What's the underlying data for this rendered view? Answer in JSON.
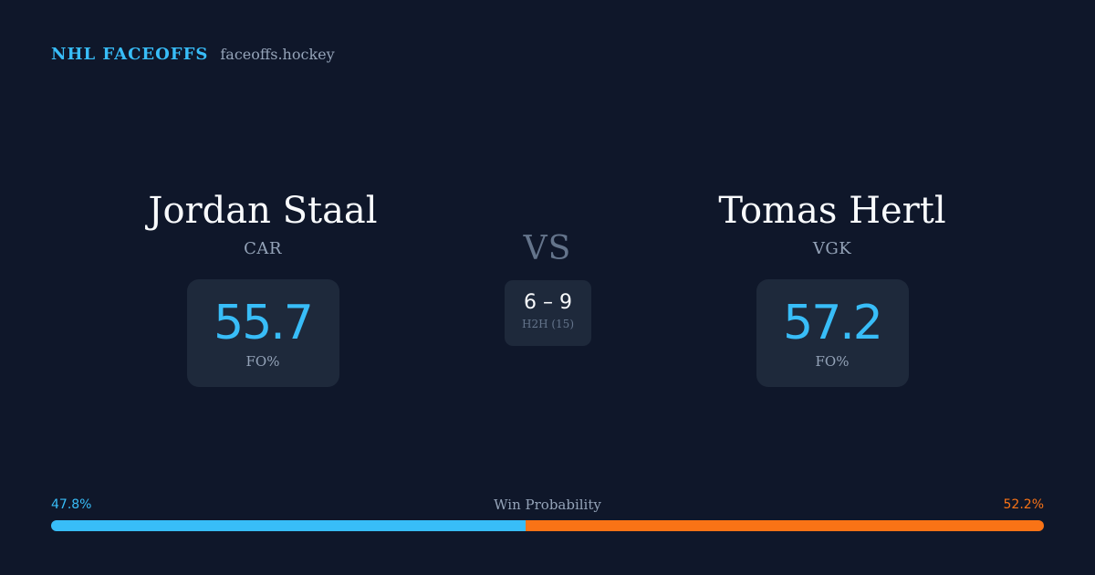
{
  "brand": {
    "name": "NHL FACEOFFS",
    "domain": "faceoffs.hockey"
  },
  "matchup": {
    "vs_label": "VS",
    "h2h": {
      "score": "6 – 9",
      "label": "H2H (15)"
    }
  },
  "players": [
    {
      "name": "Jordan Staal",
      "team": "CAR",
      "fo_pct": "55.7",
      "fo_label": "FO%"
    },
    {
      "name": "Tomas Hertl",
      "team": "VGK",
      "fo_pct": "57.2",
      "fo_label": "FO%"
    }
  ],
  "win_probability": {
    "title": "Win Probability",
    "left_label": "47.8%",
    "right_label": "52.2%",
    "left_value": 47.8,
    "right_value": 52.2,
    "colors": {
      "left": "#38bdf8",
      "right": "#f97316"
    }
  }
}
